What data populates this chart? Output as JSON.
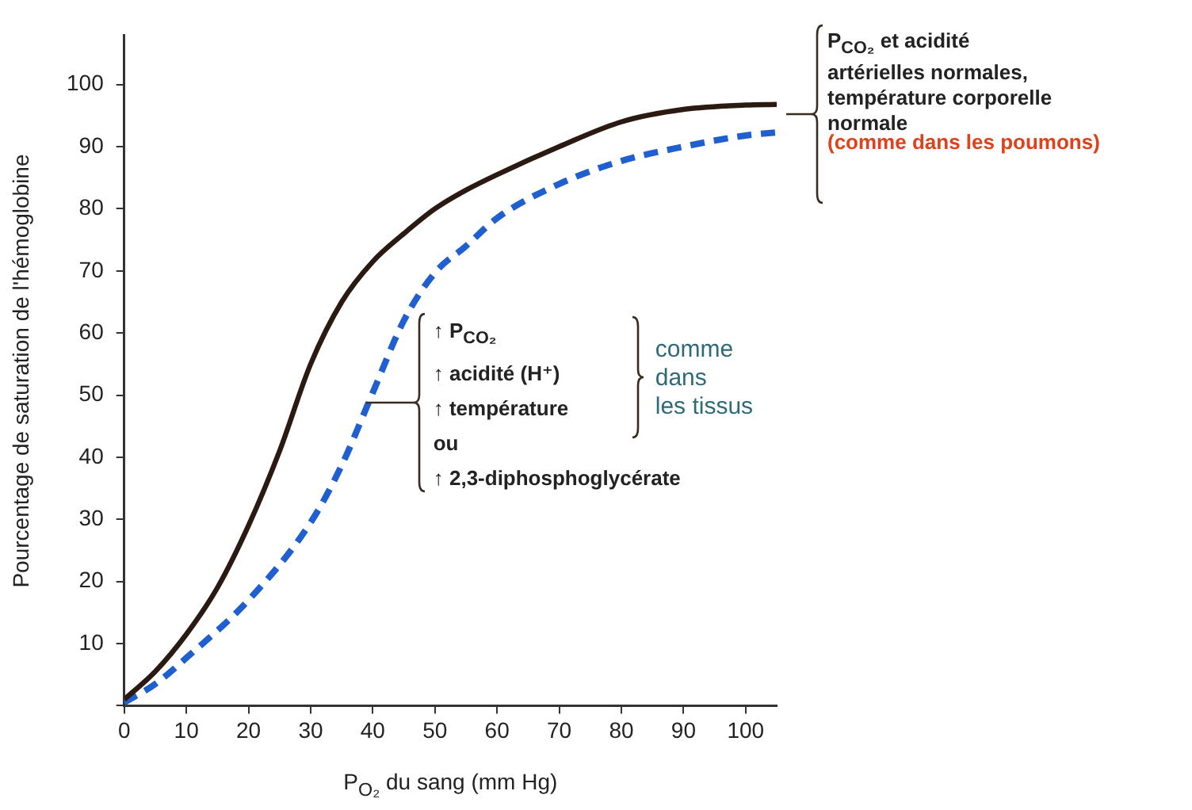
{
  "chart_data": {
    "type": "line",
    "xlabel": "P$_{O₂}$ du sang (mm Hg)",
    "ylabel": "Pourcentage de saturation de l'hémoglobine",
    "xlim": [
      0,
      105
    ],
    "ylim": [
      0,
      108
    ],
    "xticks": [
      0,
      10,
      20,
      30,
      40,
      50,
      60,
      70,
      80,
      90,
      100
    ],
    "yticks": [
      {
        "value": 0,
        "label": null
      },
      10,
      20,
      30,
      40,
      50,
      60,
      70,
      80,
      90,
      100
    ],
    "grid": false,
    "legend": false,
    "marker": "none",
    "series": [
      {
        "color": "#2b1a12",
        "line_style": "solid",
        "x": [
          0,
          5,
          10,
          15,
          20,
          25,
          30,
          35,
          40,
          45,
          50,
          55,
          60,
          70,
          80,
          90,
          100,
          105
        ],
        "values": [
          1,
          5.5,
          11.5,
          19,
          29,
          41,
          55,
          65,
          71.5,
          76,
          80,
          83,
          85.5,
          90,
          94,
          96,
          96.7,
          96.8
        ]
      },
      {
        "color": "#1f5fd0",
        "line_style": "dashed",
        "x": [
          0,
          5,
          10,
          20,
          30,
          35,
          40,
          45,
          50,
          55,
          60,
          70,
          80,
          90,
          100,
          105
        ],
        "values": [
          0.5,
          3.5,
          7.7,
          17,
          29.5,
          38.7,
          50.4,
          62,
          69.7,
          74,
          78.5,
          84,
          87.7,
          90,
          91.8,
          92.3
        ]
      }
    ],
    "annotations": [
      "P$_{CO₂}$ et acidité\nartérielles normales,\ntempérature corporelle\nnormale",
      "(comme dans les poumons)",
      "↑ P$_{CO₂}$\n↑ acidité (H⁺)\n↑ température\nou\n↑ 2,3-diphosphoglycérate",
      "comme\ndans\nles tissus"
    ]
  }
}
